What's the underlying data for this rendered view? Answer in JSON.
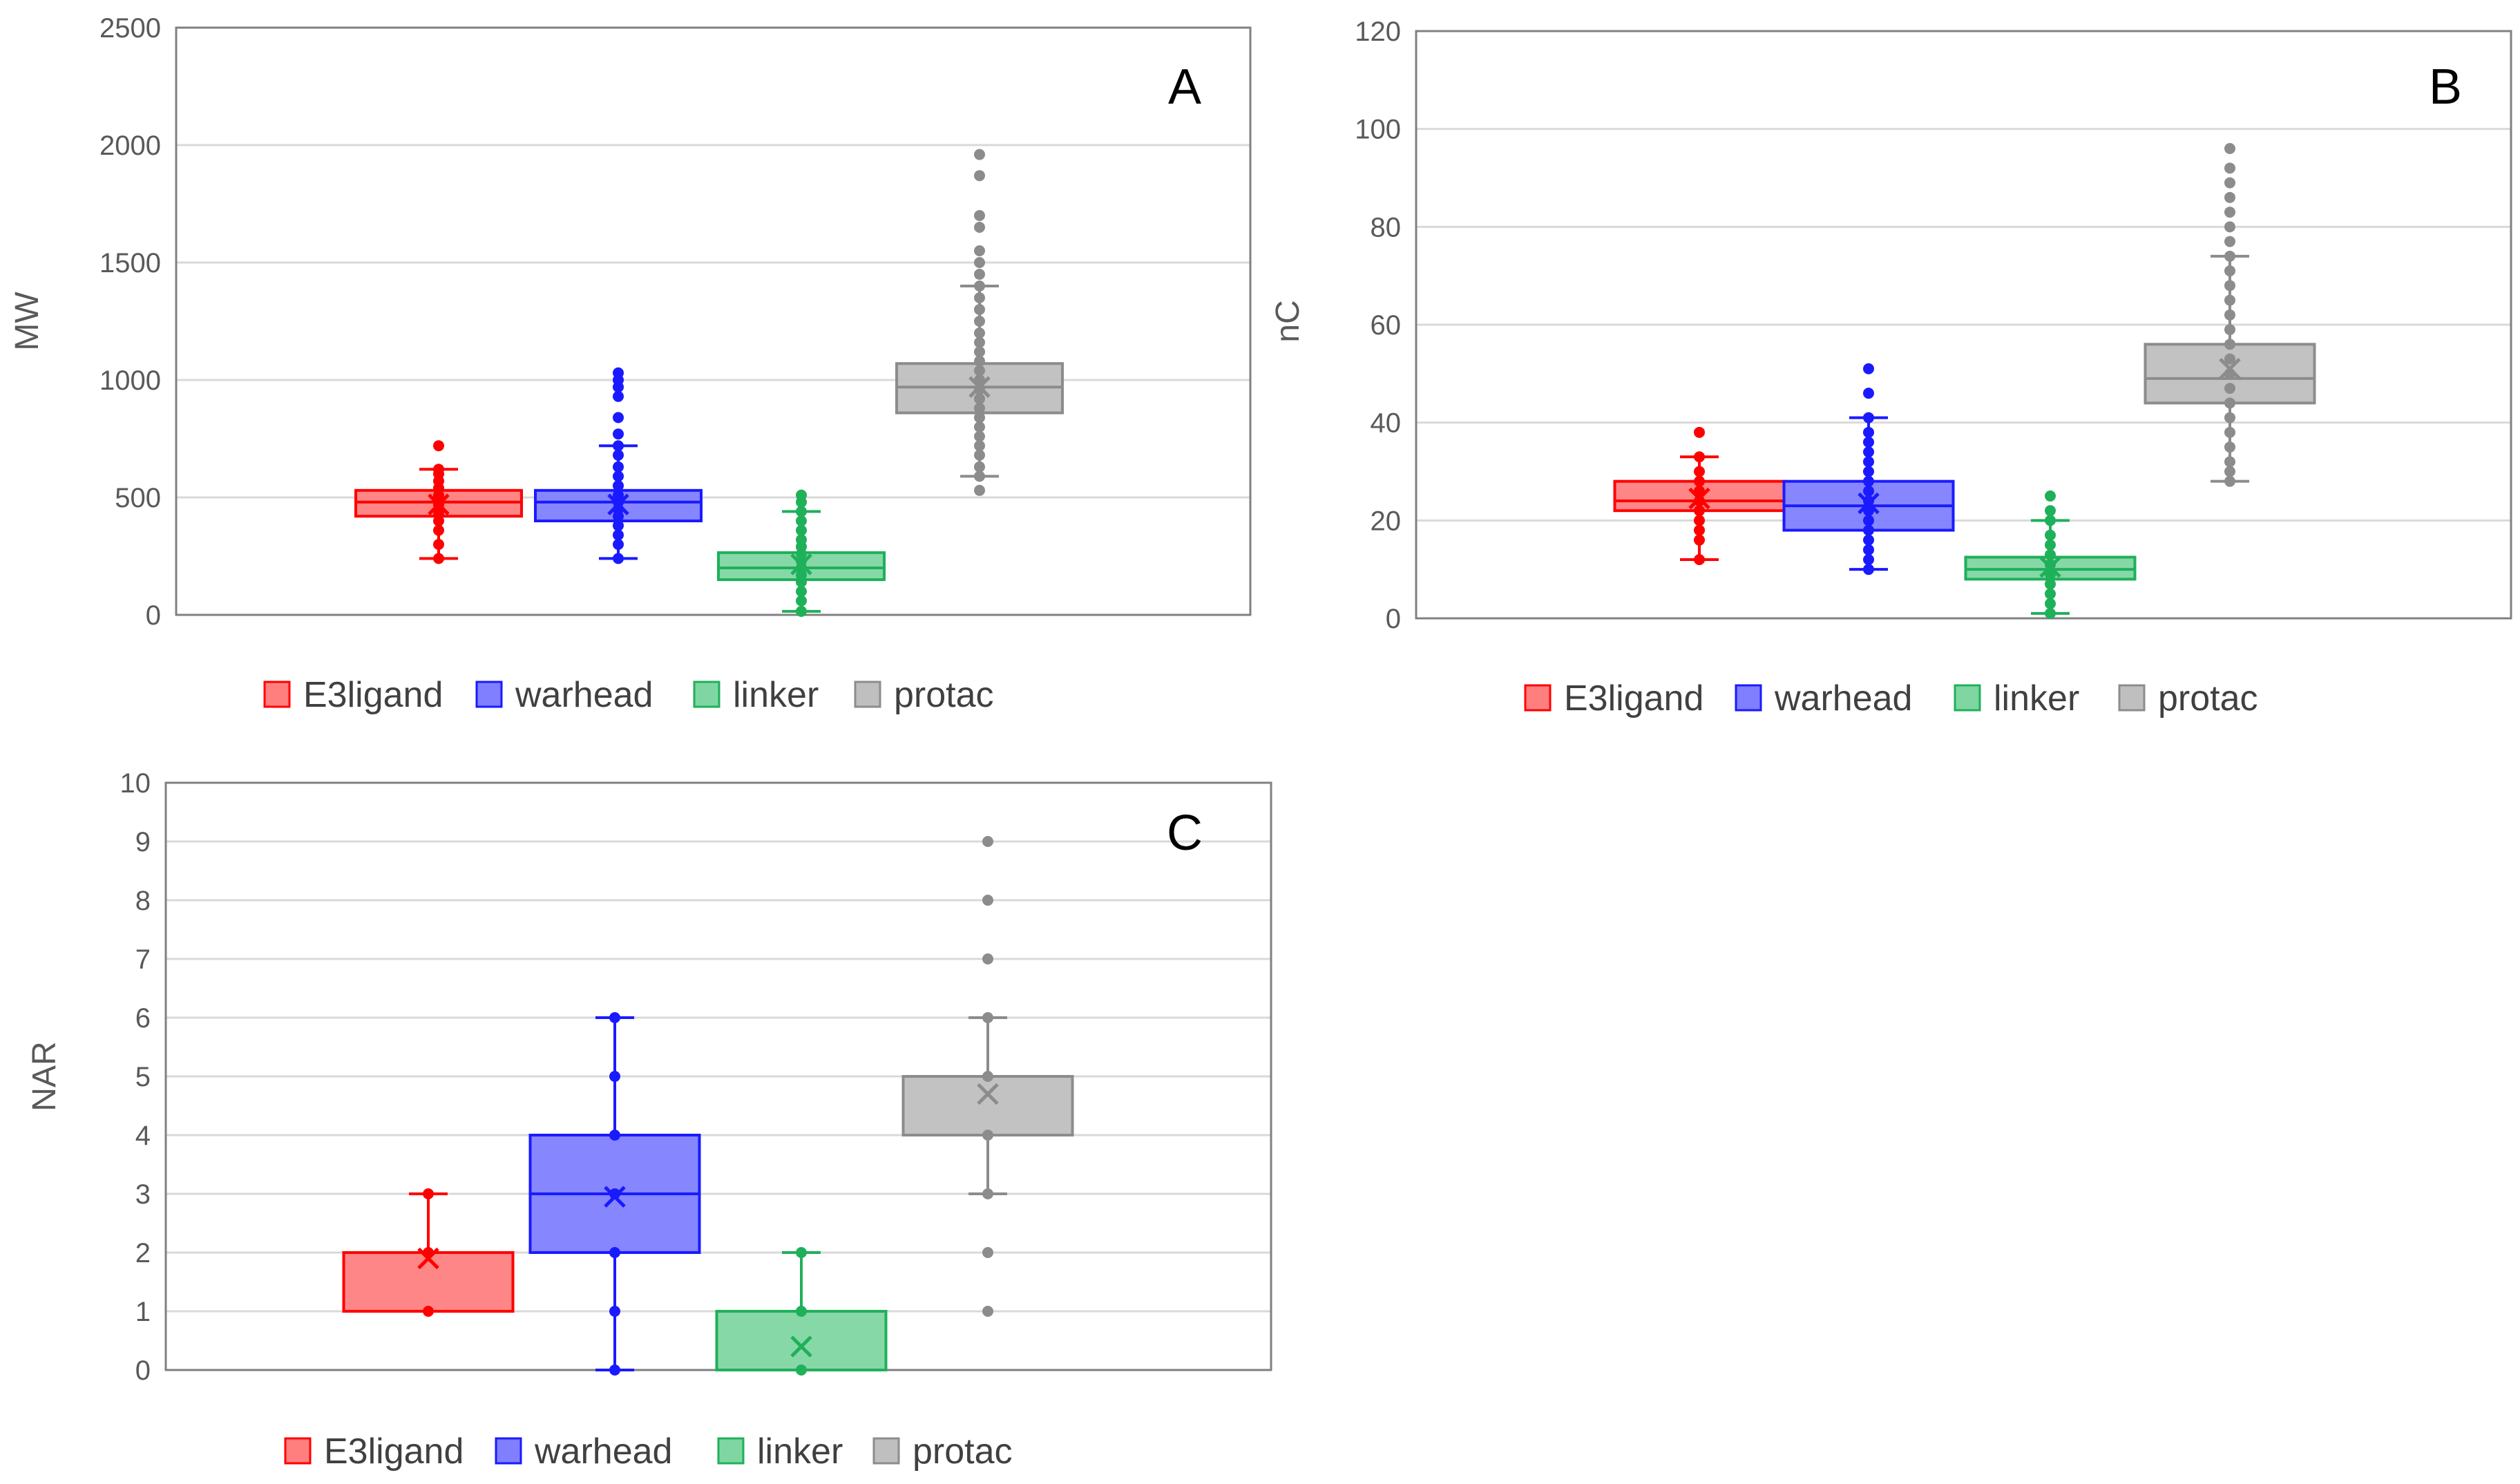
{
  "colors": {
    "E3ligand": {
      "stroke": "#ff0000",
      "fill": "#ff7f7f"
    },
    "warhead": {
      "stroke": "#1a1aff",
      "fill": "#7f7fff"
    },
    "linker": {
      "stroke": "#1fb05a",
      "fill": "#80d6a2"
    },
    "protac": {
      "stroke": "#8c8c8c",
      "fill": "#bfbfbf"
    }
  },
  "chart_data": [
    {
      "type": "box",
      "panel_label": "A",
      "title": "",
      "xlabel": "",
      "ylabel": "MW",
      "ylim": [
        0,
        2500
      ],
      "yticks": [
        0,
        500,
        1000,
        1500,
        2000,
        2500
      ],
      "grid": true,
      "legend": [
        "E3ligand",
        "warhead",
        "linker",
        "protac"
      ],
      "series": [
        {
          "name": "E3ligand",
          "whisker_low": 240,
          "q1": 420,
          "median": 480,
          "q3": 530,
          "whisker_high": 620,
          "mean": 470,
          "points": [
            240,
            300,
            360,
            400,
            430,
            450,
            470,
            490,
            510,
            540,
            570,
            600,
            620,
            720
          ]
        },
        {
          "name": "warhead",
          "whisker_low": 240,
          "q1": 400,
          "median": 480,
          "q3": 530,
          "whisker_high": 720,
          "mean": 470,
          "points": [
            240,
            300,
            340,
            380,
            420,
            450,
            480,
            510,
            550,
            590,
            630,
            680,
            720,
            770,
            840,
            930,
            970,
            1000,
            1030
          ]
        },
        {
          "name": "linker",
          "whisker_low": 15,
          "q1": 150,
          "median": 200,
          "q3": 265,
          "whisker_high": 440,
          "mean": 215,
          "points": [
            15,
            60,
            100,
            140,
            170,
            200,
            230,
            260,
            290,
            320,
            360,
            400,
            440,
            480,
            510
          ]
        },
        {
          "name": "protac",
          "whisker_low": 590,
          "q1": 860,
          "median": 970,
          "q3": 1070,
          "whisker_high": 1400,
          "mean": 970,
          "points": [
            530,
            590,
            630,
            680,
            720,
            760,
            800,
            840,
            880,
            920,
            960,
            1000,
            1040,
            1080,
            1120,
            1160,
            1200,
            1250,
            1300,
            1350,
            1400,
            1450,
            1500,
            1550,
            1650,
            1700,
            1870,
            1960
          ]
        }
      ]
    },
    {
      "type": "box",
      "panel_label": "B",
      "title": "",
      "xlabel": "",
      "ylabel": "nC",
      "ylim": [
        0,
        120
      ],
      "yticks": [
        0,
        20,
        40,
        60,
        80,
        100,
        120
      ],
      "grid": true,
      "legend": [
        "E3ligand",
        "warhead",
        "linker",
        "protac"
      ],
      "series": [
        {
          "name": "E3ligand",
          "whisker_low": 12,
          "q1": 22,
          "median": 24,
          "q3": 28,
          "whisker_high": 33,
          "mean": 24.5,
          "points": [
            12,
            16,
            18,
            20,
            22,
            24,
            26,
            28,
            30,
            33,
            38
          ]
        },
        {
          "name": "warhead",
          "whisker_low": 10,
          "q1": 18,
          "median": 23,
          "q3": 28,
          "whisker_high": 41,
          "mean": 23.5,
          "points": [
            10,
            12,
            14,
            16,
            18,
            20,
            22,
            24,
            26,
            28,
            30,
            32,
            34,
            36,
            38,
            41,
            46,
            51
          ]
        },
        {
          "name": "linker",
          "whisker_low": 1,
          "q1": 8,
          "median": 10,
          "q3": 12.5,
          "whisker_high": 20,
          "mean": 10.5,
          "points": [
            1,
            3,
            5,
            7,
            9,
            11,
            13,
            15,
            17,
            20,
            22,
            25
          ]
        },
        {
          "name": "protac",
          "whisker_low": 28,
          "q1": 44,
          "median": 49,
          "q3": 56,
          "whisker_high": 74,
          "mean": 51,
          "points": [
            28,
            30,
            32,
            35,
            38,
            41,
            44,
            47,
            50,
            53,
            56,
            59,
            62,
            65,
            68,
            71,
            74,
            77,
            80,
            83,
            86,
            89,
            92,
            96
          ]
        }
      ]
    },
    {
      "type": "box",
      "panel_label": "C",
      "title": "",
      "xlabel": "",
      "ylabel": "NAR",
      "ylim": [
        0,
        10
      ],
      "yticks": [
        0,
        1,
        2,
        3,
        4,
        5,
        6,
        7,
        8,
        9,
        10
      ],
      "grid": true,
      "legend": [
        "E3ligand",
        "warhead",
        "linker",
        "protac"
      ],
      "series": [
        {
          "name": "E3ligand",
          "whisker_low": 1,
          "q1": 1,
          "median": 2,
          "q3": 2,
          "whisker_high": 3,
          "mean": 1.9,
          "points": [
            1,
            2,
            3
          ]
        },
        {
          "name": "warhead",
          "whisker_low": 0,
          "q1": 2,
          "median": 3,
          "q3": 4,
          "whisker_high": 6,
          "mean": 2.95,
          "points": [
            0,
            1,
            2,
            3,
            4,
            5,
            6
          ]
        },
        {
          "name": "linker",
          "whisker_low": 0,
          "q1": 0,
          "median": 0,
          "q3": 1,
          "whisker_high": 2,
          "mean": 0.4,
          "points": [
            0,
            1,
            2
          ]
        },
        {
          "name": "protac",
          "whisker_low": 3,
          "q1": 4,
          "median": 5,
          "q3": 5,
          "whisker_high": 6,
          "mean": 4.7,
          "points": [
            1,
            2,
            3,
            4,
            5,
            6,
            7,
            8,
            9
          ]
        }
      ]
    }
  ]
}
